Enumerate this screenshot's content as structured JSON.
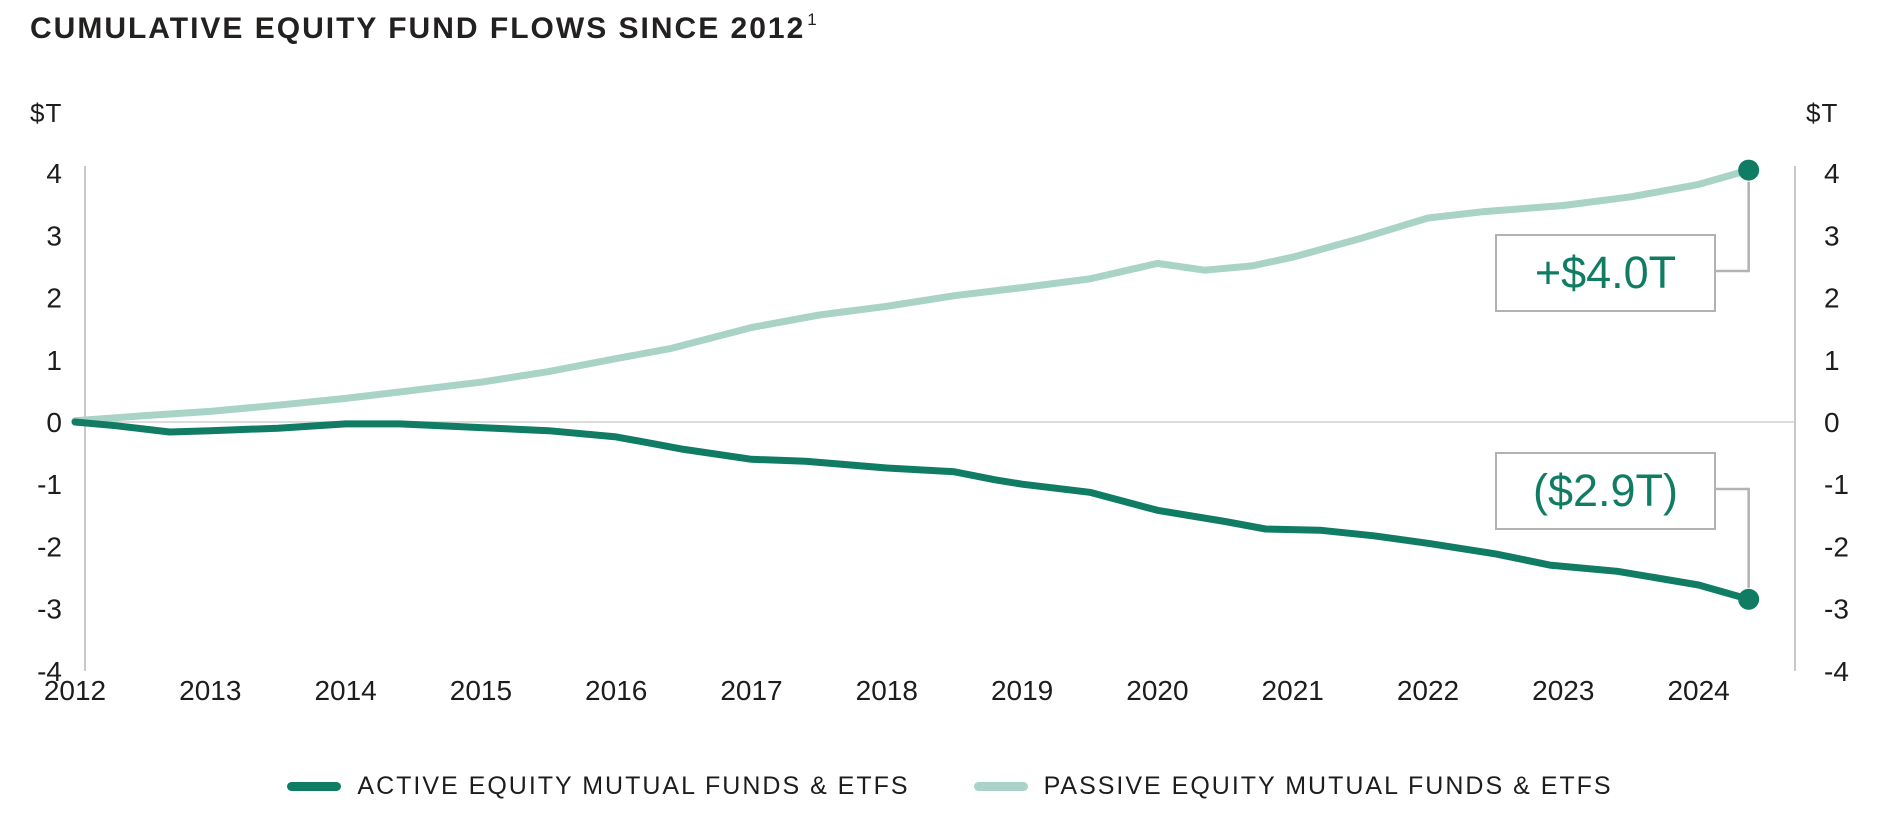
{
  "title": {
    "text": "CUMULATIVE EQUITY FUND FLOWS SINCE 2012",
    "superscript": "1"
  },
  "colors": {
    "active_line": "#0f7c63",
    "passive_line": "#a8d3c6",
    "endpoint_dot": "#0f7c63",
    "axis_line": "#c8c8c8",
    "zero_gridline": "#d0d0d0",
    "connector": "#b2b2b2",
    "callout_border": "#b2b2b2",
    "callout_text": "#0f7c63",
    "text": "#1d1d1d"
  },
  "callouts": {
    "passive": "+$4.0T",
    "active": "($2.9T)"
  },
  "legend": [
    {
      "label": "ACTIVE EQUITY MUTUAL FUNDS & ETFS",
      "color": "#0f7c63"
    },
    {
      "label": "PASSIVE EQUITY MUTUAL FUNDS & ETFS",
      "color": "#a8d3c6"
    }
  ],
  "chart_data": {
    "type": "line",
    "title": "CUMULATIVE EQUITY FUND FLOWS SINCE 2012",
    "unit_left": "$T",
    "unit_right": "$T",
    "xlabel": "",
    "ylabel": "$T",
    "xlim": [
      2012,
      2024.75
    ],
    "ylim": [
      -4,
      4.1
    ],
    "grid": "zero-line-only",
    "legend_position": "bottom",
    "x_ticks": [
      "2012",
      "2013",
      "2014",
      "2015",
      "2016",
      "2017",
      "2018",
      "2019",
      "2020",
      "2021",
      "2022",
      "2023",
      "2024"
    ],
    "y_ticks": [
      "4",
      "3",
      "2",
      "1",
      "0",
      "-1",
      "-2",
      "-3",
      "-4"
    ],
    "series": [
      {
        "id": "passive",
        "name": "PASSIVE EQUITY MUTUAL FUNDS & ETFS",
        "color": "#a8d3c6",
        "endpoint_label": "+$4.0T",
        "endpoint_value": 4.05,
        "x": [
          2012,
          2012.5,
          2013,
          2013.5,
          2014,
          2014.5,
          2015,
          2015.5,
          2016,
          2016.4,
          2017,
          2017.5,
          2018,
          2018.5,
          2019,
          2019.5,
          2020,
          2020.35,
          2020.7,
          2021,
          2021.5,
          2022,
          2022.4,
          2023,
          2023.5,
          2024,
          2024.37
        ],
        "values": [
          0.02,
          0.1,
          0.17,
          0.27,
          0.38,
          0.51,
          0.64,
          0.81,
          1.02,
          1.18,
          1.52,
          1.72,
          1.86,
          2.03,
          2.16,
          2.3,
          2.55,
          2.44,
          2.51,
          2.65,
          2.95,
          3.28,
          3.38,
          3.48,
          3.62,
          3.82,
          4.05
        ]
      },
      {
        "id": "active",
        "name": "ACTIVE EQUITY MUTUAL FUNDS & ETFS",
        "color": "#0f7c63",
        "endpoint_label": "($2.9T)",
        "endpoint_value": -2.85,
        "x": [
          2012,
          2012.3,
          2012.7,
          2013,
          2013.5,
          2014,
          2014.4,
          2015,
          2015.5,
          2016,
          2016.5,
          2017,
          2017.4,
          2018,
          2018.5,
          2018.8,
          2019,
          2019.5,
          2020,
          2020.5,
          2020.8,
          2021.2,
          2021.6,
          2022,
          2022.5,
          2022.9,
          2023.4,
          2024,
          2024.37
        ],
        "values": [
          0,
          -0.06,
          -0.16,
          -0.14,
          -0.1,
          -0.03,
          -0.03,
          -0.09,
          -0.14,
          -0.24,
          -0.44,
          -0.6,
          -0.63,
          -0.74,
          -0.8,
          -0.93,
          -1.0,
          -1.13,
          -1.42,
          -1.6,
          -1.72,
          -1.74,
          -1.83,
          -1.95,
          -2.12,
          -2.3,
          -2.4,
          -2.62,
          -2.85
        ]
      }
    ]
  }
}
